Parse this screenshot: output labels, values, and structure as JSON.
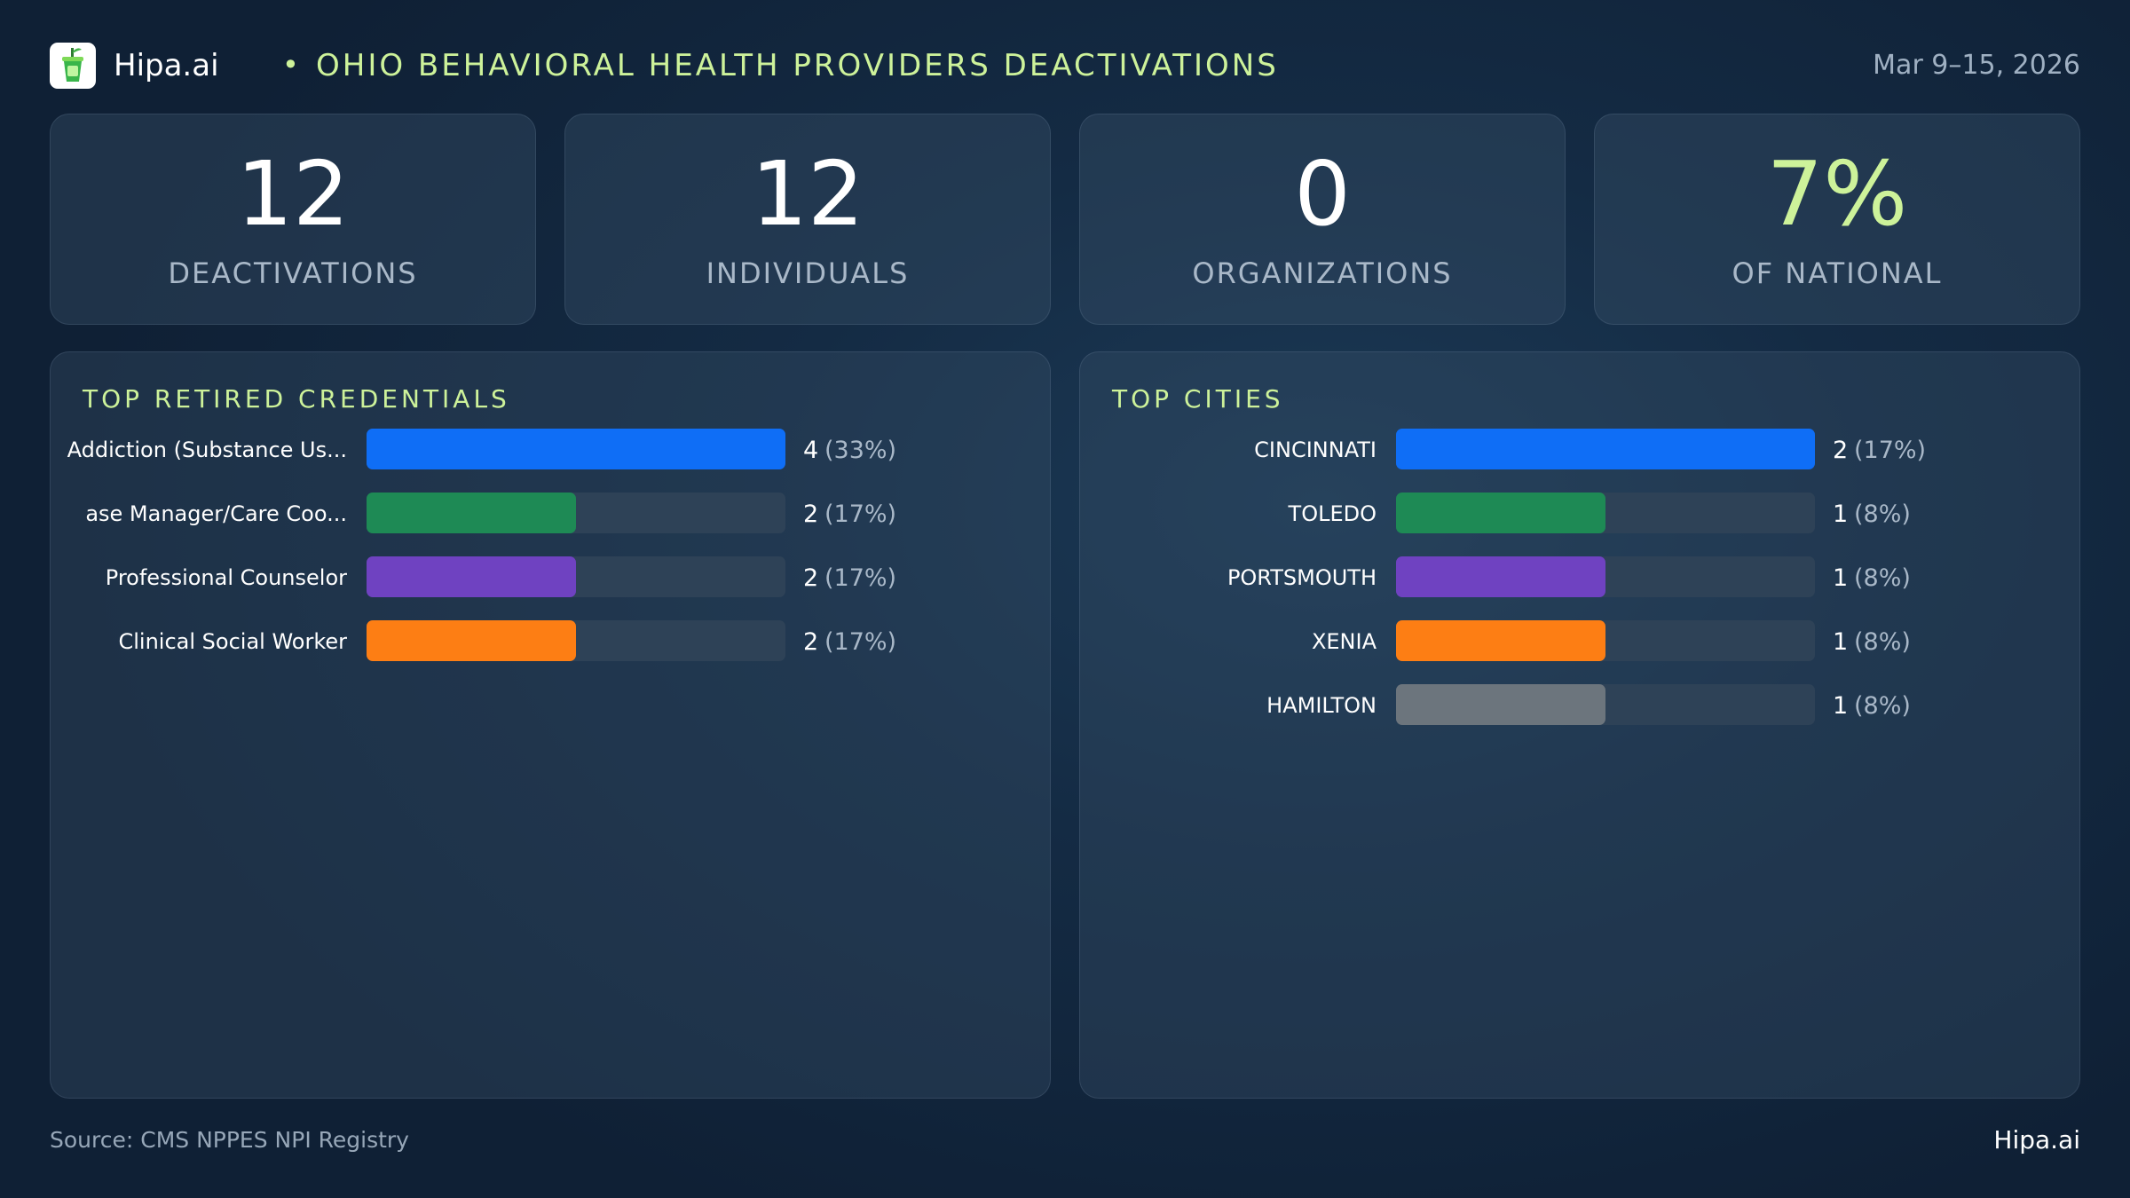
{
  "header": {
    "brand": "Hipa.ai",
    "separator": "•",
    "title": "OHIO BEHAVIORAL HEALTH PROVIDERS DEACTIVATIONS",
    "date_range": "Mar 9–15, 2026",
    "logo_icon": "green-cup-icon"
  },
  "stats": [
    {
      "value": "12",
      "label": "DEACTIVATIONS"
    },
    {
      "value": "12",
      "label": "INDIVIDUALS"
    },
    {
      "value": "0",
      "label": "ORGANIZATIONS"
    },
    {
      "value": "7%",
      "label": "OF NATIONAL"
    }
  ],
  "colors": {
    "accent": "#cdf29a",
    "blue": "#0f6ef6",
    "green": "#1e8a55",
    "purple": "#6f42c1",
    "orange": "#fd7e14",
    "gray": "#6c757d",
    "track": "#2e4257"
  },
  "chart_data": [
    {
      "type": "bar",
      "orientation": "horizontal",
      "title": "TOP RETIRED CREDENTIALS",
      "xlim": [
        0,
        4
      ],
      "categories": [
        "Addiction (Substance Us...",
        "ase Manager/Care Coo...",
        "Professional Counselor",
        "Clinical Social Worker"
      ],
      "values": [
        4,
        2,
        2,
        2
      ],
      "value_labels": [
        "4",
        "2",
        "2",
        "2"
      ],
      "percent_labels": [
        "(33%)",
        "(17%)",
        "(17%)",
        "(17%)"
      ],
      "bar_colors": [
        "#0f6ef6",
        "#1e8a55",
        "#6f42c1",
        "#fd7e14"
      ]
    },
    {
      "type": "bar",
      "orientation": "horizontal",
      "title": "TOP CITIES",
      "xlim": [
        0,
        2
      ],
      "categories": [
        "CINCINNATI",
        "TOLEDO",
        "PORTSMOUTH",
        "XENIA",
        "HAMILTON"
      ],
      "values": [
        2,
        1,
        1,
        1,
        1
      ],
      "value_labels": [
        "2",
        "1",
        "1",
        "1",
        "1"
      ],
      "percent_labels": [
        "(17%)",
        "(8%)",
        "(8%)",
        "(8%)",
        "(8%)"
      ],
      "bar_colors": [
        "#0f6ef6",
        "#1e8a55",
        "#6f42c1",
        "#fd7e14",
        "#6c757d"
      ]
    }
  ],
  "footer": {
    "source": "Source: CMS NPPES NPI Registry",
    "brand": "Hipa.ai"
  }
}
